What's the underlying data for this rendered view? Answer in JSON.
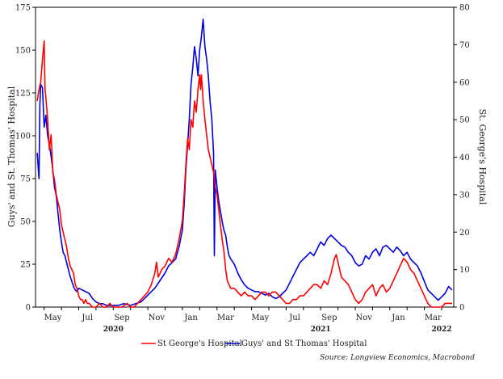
{
  "chart_data": {
    "type": "line",
    "title": "",
    "source": "Source: Longview Economics, Macrobond",
    "x_tick_labels": [
      {
        "label": "May",
        "pos": 4.5
      },
      {
        "label": "Jul",
        "pos": 6.5
      },
      {
        "label": "Sep",
        "pos": 8.5
      },
      {
        "label": "Nov",
        "pos": 10.5
      },
      {
        "label": "Jan",
        "pos": 12.5
      },
      {
        "label": "Mar",
        "pos": 14.5
      },
      {
        "label": "May",
        "pos": 16.5
      },
      {
        "label": "Jul",
        "pos": 18.5
      },
      {
        "label": "Sep",
        "pos": 20.5
      },
      {
        "label": "Nov",
        "pos": 22.5
      },
      {
        "label": "Jan",
        "pos": 24.5
      },
      {
        "label": "Mar",
        "pos": 26.5
      }
    ],
    "year_labels": [
      {
        "label": "2020",
        "pos": 8.0
      },
      {
        "label": "2021",
        "pos": 20.0
      },
      {
        "label": "2022",
        "pos": 27.0
      }
    ],
    "x_unit_note": "x values are months elapsed since 1 Jan 2020 (e.g. 4.5 = mid-May 2020)",
    "xlim": [
      3.5,
      27.7
    ],
    "y_left": {
      "label": "Guys' and St. Thomas' Hospital",
      "ylim": [
        0,
        175
      ],
      "ticks": [
        0,
        25,
        50,
        75,
        100,
        125,
        150,
        175
      ]
    },
    "y_right": {
      "label": "St. George's Hospital",
      "ylim": [
        0,
        80
      ],
      "ticks": [
        0,
        10,
        20,
        30,
        40,
        50,
        60,
        70,
        80
      ]
    },
    "legend_position": "bottom-center",
    "grid": false,
    "series": [
      {
        "name": "St George's Hospital",
        "axis": "right",
        "color": "#ff0000",
        "points": [
          [
            3.6,
            55
          ],
          [
            3.7,
            58
          ],
          [
            3.8,
            60
          ],
          [
            3.9,
            66
          ],
          [
            4.0,
            71
          ],
          [
            4.05,
            58
          ],
          [
            4.1,
            56
          ],
          [
            4.2,
            50
          ],
          [
            4.3,
            42
          ],
          [
            4.4,
            46
          ],
          [
            4.5,
            36
          ],
          [
            4.6,
            34
          ],
          [
            4.7,
            30
          ],
          [
            4.8,
            28
          ],
          [
            4.9,
            26
          ],
          [
            5.0,
            22
          ],
          [
            5.1,
            20
          ],
          [
            5.2,
            18
          ],
          [
            5.3,
            16
          ],
          [
            5.4,
            13
          ],
          [
            5.5,
            11
          ],
          [
            5.6,
            10
          ],
          [
            5.7,
            9
          ],
          [
            5.8,
            6
          ],
          [
            5.9,
            5
          ],
          [
            6.0,
            3
          ],
          [
            6.1,
            2
          ],
          [
            6.2,
            2
          ],
          [
            6.3,
            1
          ],
          [
            6.4,
            2
          ],
          [
            6.5,
            1
          ],
          [
            6.6,
            1
          ],
          [
            6.8,
            0
          ],
          [
            7.0,
            0
          ],
          [
            7.2,
            1
          ],
          [
            7.4,
            0
          ],
          [
            7.6,
            0
          ],
          [
            7.8,
            1
          ],
          [
            8.0,
            0
          ],
          [
            8.2,
            0
          ],
          [
            8.5,
            0
          ],
          [
            8.8,
            1
          ],
          [
            9.0,
            0
          ],
          [
            9.2,
            0
          ],
          [
            9.4,
            1
          ],
          [
            9.6,
            2
          ],
          [
            9.8,
            3
          ],
          [
            10.0,
            4
          ],
          [
            10.2,
            6
          ],
          [
            10.4,
            9
          ],
          [
            10.5,
            12
          ],
          [
            10.6,
            8
          ],
          [
            10.8,
            10
          ],
          [
            11.0,
            11
          ],
          [
            11.2,
            13
          ],
          [
            11.4,
            12
          ],
          [
            11.6,
            14
          ],
          [
            11.8,
            18
          ],
          [
            12.0,
            23
          ],
          [
            12.1,
            30
          ],
          [
            12.2,
            38
          ],
          [
            12.3,
            45
          ],
          [
            12.4,
            42
          ],
          [
            12.5,
            50
          ],
          [
            12.6,
            48
          ],
          [
            12.7,
            55
          ],
          [
            12.8,
            52
          ],
          [
            12.9,
            58
          ],
          [
            13.0,
            62
          ],
          [
            13.05,
            58
          ],
          [
            13.1,
            62
          ],
          [
            13.2,
            55
          ],
          [
            13.3,
            50
          ],
          [
            13.4,
            46
          ],
          [
            13.5,
            42
          ],
          [
            13.6,
            40
          ],
          [
            13.7,
            38
          ],
          [
            13.8,
            36
          ],
          [
            13.9,
            32
          ],
          [
            14.0,
            30
          ],
          [
            14.1,
            26
          ],
          [
            14.2,
            22
          ],
          [
            14.3,
            18
          ],
          [
            14.4,
            15
          ],
          [
            14.5,
            10
          ],
          [
            14.6,
            7
          ],
          [
            14.7,
            6
          ],
          [
            14.8,
            5
          ],
          [
            15.0,
            5
          ],
          [
            15.2,
            4
          ],
          [
            15.4,
            3
          ],
          [
            15.6,
            4
          ],
          [
            15.8,
            3
          ],
          [
            16.0,
            3
          ],
          [
            16.2,
            2
          ],
          [
            16.4,
            3
          ],
          [
            16.6,
            4
          ],
          [
            16.8,
            4
          ],
          [
            17.0,
            3
          ],
          [
            17.2,
            4
          ],
          [
            17.4,
            4
          ],
          [
            17.6,
            3
          ],
          [
            17.8,
            2
          ],
          [
            18.0,
            1
          ],
          [
            18.2,
            1
          ],
          [
            18.4,
            2
          ],
          [
            18.6,
            2
          ],
          [
            18.8,
            3
          ],
          [
            19.0,
            3
          ],
          [
            19.2,
            4
          ],
          [
            19.4,
            5
          ],
          [
            19.6,
            6
          ],
          [
            19.8,
            6
          ],
          [
            20.0,
            5
          ],
          [
            20.2,
            7
          ],
          [
            20.4,
            6
          ],
          [
            20.6,
            9
          ],
          [
            20.8,
            13
          ],
          [
            20.9,
            14
          ],
          [
            21.0,
            12
          ],
          [
            21.2,
            8
          ],
          [
            21.4,
            7
          ],
          [
            21.6,
            6
          ],
          [
            21.8,
            4
          ],
          [
            22.0,
            2
          ],
          [
            22.2,
            1
          ],
          [
            22.4,
            2
          ],
          [
            22.6,
            4
          ],
          [
            22.8,
            5
          ],
          [
            23.0,
            6
          ],
          [
            23.2,
            3
          ],
          [
            23.4,
            5
          ],
          [
            23.6,
            6
          ],
          [
            23.8,
            4
          ],
          [
            24.0,
            5
          ],
          [
            24.2,
            7
          ],
          [
            24.4,
            9
          ],
          [
            24.6,
            11
          ],
          [
            24.8,
            13
          ],
          [
            25.0,
            12
          ],
          [
            25.2,
            10
          ],
          [
            25.4,
            9
          ],
          [
            25.6,
            7
          ],
          [
            25.8,
            5
          ],
          [
            26.0,
            3
          ],
          [
            26.2,
            1
          ],
          [
            26.4,
            0
          ],
          [
            26.6,
            0
          ],
          [
            26.8,
            0
          ],
          [
            27.0,
            0
          ],
          [
            27.2,
            1
          ],
          [
            27.4,
            1
          ],
          [
            27.6,
            1
          ]
        ]
      },
      {
        "name": "Guys' and St Thomas' Hospital",
        "axis": "left",
        "color": "#0000e0",
        "points": [
          [
            3.6,
            90
          ],
          [
            3.7,
            75
          ],
          [
            3.75,
            118
          ],
          [
            3.8,
            130
          ],
          [
            3.9,
            128
          ],
          [
            4.0,
            105
          ],
          [
            4.1,
            112
          ],
          [
            4.2,
            100
          ],
          [
            4.3,
            95
          ],
          [
            4.4,
            88
          ],
          [
            4.5,
            80
          ],
          [
            4.6,
            70
          ],
          [
            4.7,
            65
          ],
          [
            4.8,
            55
          ],
          [
            4.9,
            45
          ],
          [
            5.0,
            38
          ],
          [
            5.1,
            32
          ],
          [
            5.2,
            30
          ],
          [
            5.3,
            26
          ],
          [
            5.4,
            22
          ],
          [
            5.5,
            18
          ],
          [
            5.6,
            15
          ],
          [
            5.7,
            12
          ],
          [
            5.8,
            10
          ],
          [
            5.9,
            9
          ],
          [
            6.0,
            11
          ],
          [
            6.2,
            10
          ],
          [
            6.4,
            9
          ],
          [
            6.6,
            8
          ],
          [
            6.8,
            5
          ],
          [
            7.0,
            3
          ],
          [
            7.2,
            2
          ],
          [
            7.4,
            2
          ],
          [
            7.6,
            1
          ],
          [
            7.8,
            1
          ],
          [
            8.0,
            1
          ],
          [
            8.3,
            1
          ],
          [
            8.6,
            2
          ],
          [
            9.0,
            1
          ],
          [
            9.3,
            2
          ],
          [
            9.6,
            3
          ],
          [
            9.8,
            5
          ],
          [
            10.0,
            7
          ],
          [
            10.2,
            9
          ],
          [
            10.4,
            11
          ],
          [
            10.6,
            14
          ],
          [
            10.8,
            17
          ],
          [
            11.0,
            20
          ],
          [
            11.2,
            24
          ],
          [
            11.4,
            26
          ],
          [
            11.6,
            28
          ],
          [
            11.8,
            35
          ],
          [
            12.0,
            45
          ],
          [
            12.1,
            60
          ],
          [
            12.2,
            80
          ],
          [
            12.3,
            95
          ],
          [
            12.4,
            110
          ],
          [
            12.5,
            130
          ],
          [
            12.6,
            140
          ],
          [
            12.7,
            152
          ],
          [
            12.8,
            145
          ],
          [
            12.9,
            135
          ],
          [
            13.0,
            150
          ],
          [
            13.1,
            158
          ],
          [
            13.2,
            168
          ],
          [
            13.25,
            160
          ],
          [
            13.3,
            152
          ],
          [
            13.4,
            145
          ],
          [
            13.5,
            135
          ],
          [
            13.6,
            120
          ],
          [
            13.7,
            110
          ],
          [
            13.8,
            90
          ],
          [
            13.85,
            30
          ],
          [
            13.9,
            80
          ],
          [
            14.0,
            70
          ],
          [
            14.1,
            62
          ],
          [
            14.2,
            56
          ],
          [
            14.3,
            50
          ],
          [
            14.4,
            45
          ],
          [
            14.5,
            42
          ],
          [
            14.6,
            35
          ],
          [
            14.7,
            30
          ],
          [
            14.8,
            28
          ],
          [
            15.0,
            25
          ],
          [
            15.2,
            20
          ],
          [
            15.4,
            16
          ],
          [
            15.6,
            13
          ],
          [
            15.8,
            11
          ],
          [
            16.0,
            10
          ],
          [
            16.2,
            9
          ],
          [
            16.4,
            9
          ],
          [
            16.6,
            8
          ],
          [
            16.8,
            7
          ],
          [
            17.0,
            8
          ],
          [
            17.2,
            6
          ],
          [
            17.4,
            5
          ],
          [
            17.6,
            6
          ],
          [
            17.8,
            8
          ],
          [
            18.0,
            10
          ],
          [
            18.2,
            14
          ],
          [
            18.4,
            18
          ],
          [
            18.6,
            22
          ],
          [
            18.8,
            26
          ],
          [
            19.0,
            28
          ],
          [
            19.2,
            30
          ],
          [
            19.4,
            32
          ],
          [
            19.6,
            30
          ],
          [
            19.8,
            34
          ],
          [
            20.0,
            38
          ],
          [
            20.2,
            36
          ],
          [
            20.4,
            40
          ],
          [
            20.6,
            42
          ],
          [
            20.8,
            40
          ],
          [
            21.0,
            38
          ],
          [
            21.2,
            36
          ],
          [
            21.4,
            35
          ],
          [
            21.6,
            32
          ],
          [
            21.8,
            30
          ],
          [
            22.0,
            26
          ],
          [
            22.2,
            24
          ],
          [
            22.4,
            25
          ],
          [
            22.6,
            30
          ],
          [
            22.8,
            28
          ],
          [
            23.0,
            32
          ],
          [
            23.2,
            34
          ],
          [
            23.4,
            30
          ],
          [
            23.6,
            35
          ],
          [
            23.8,
            36
          ],
          [
            24.0,
            34
          ],
          [
            24.2,
            32
          ],
          [
            24.4,
            35
          ],
          [
            24.6,
            33
          ],
          [
            24.8,
            30
          ],
          [
            25.0,
            32
          ],
          [
            25.2,
            28
          ],
          [
            25.4,
            26
          ],
          [
            25.6,
            24
          ],
          [
            25.8,
            20
          ],
          [
            26.0,
            15
          ],
          [
            26.2,
            10
          ],
          [
            26.4,
            8
          ],
          [
            26.6,
            6
          ],
          [
            26.8,
            4
          ],
          [
            27.0,
            6
          ],
          [
            27.2,
            8
          ],
          [
            27.4,
            12
          ],
          [
            27.6,
            10
          ]
        ]
      }
    ]
  }
}
